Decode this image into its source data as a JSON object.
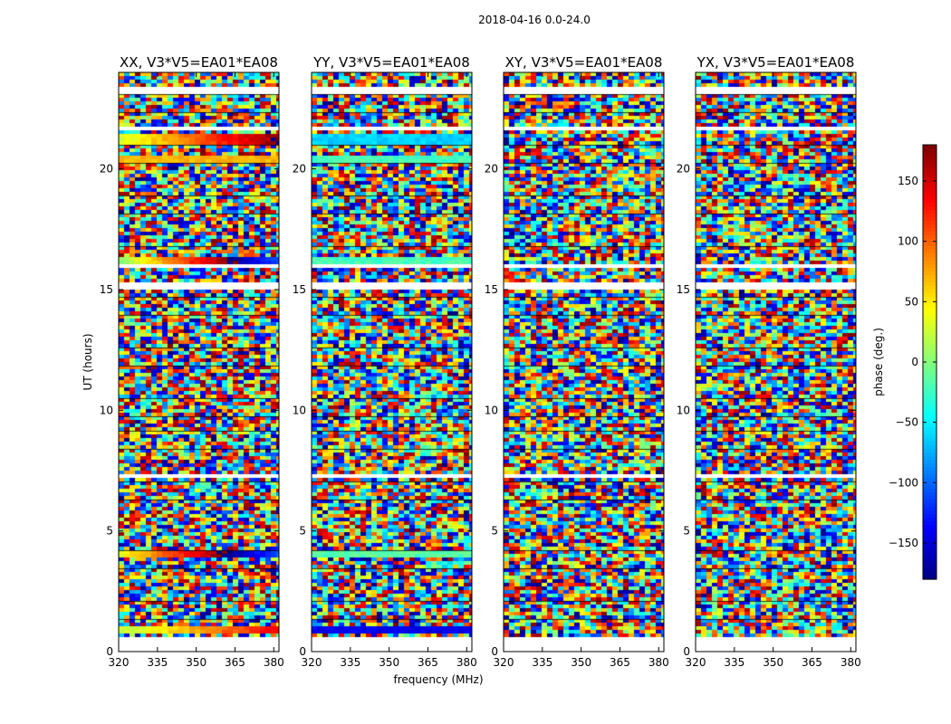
{
  "figure": {
    "suptitle": "2018-04-16 0.0-24.0",
    "xlabel": "frequency (MHz)",
    "ylabel": "UT (hours)",
    "colorbar_label": "phase (deg.)"
  },
  "colorbar": {
    "range": [
      -180,
      180
    ],
    "ticks": [
      "150",
      "100",
      "50",
      "0",
      "−50",
      "−100",
      "−150"
    ],
    "tick_values": [
      150,
      100,
      50,
      0,
      -50,
      -100,
      -150
    ],
    "colormap": "jet"
  },
  "chart_data": {
    "type": "heatmap",
    "title": "2018-04-16 0.0-24.0",
    "xlabel": "frequency (MHz)",
    "ylabel": "UT (hours)",
    "xlim": [
      320,
      382
    ],
    "ylim": [
      0,
      24
    ],
    "x_ticks": [
      "320",
      "335",
      "350",
      "365",
      "380"
    ],
    "x_tick_values": [
      320,
      335,
      350,
      365,
      380
    ],
    "y_ticks": [
      "0",
      "5",
      "10",
      "15",
      "20"
    ],
    "y_tick_values": [
      0,
      5,
      10,
      15,
      20
    ],
    "value_label": "phase (deg.)",
    "value_range": [
      -180,
      180
    ],
    "panels": [
      {
        "title": "XX, V3*V5=EA01*EA08",
        "bands": [
          {
            "hour": 0.95,
            "from": 20,
            "to": 140
          },
          {
            "hour": 4.15,
            "from": 40,
            "to": 260
          },
          {
            "hour": 16.3,
            "from": 10,
            "to": 260
          },
          {
            "hour": 20.5,
            "from": 70,
            "to": 70
          },
          {
            "hour": 21.3,
            "from": 30,
            "to": 180
          }
        ]
      },
      {
        "title": "YY, V3*V5=EA01*EA08",
        "bands": [
          {
            "hour": 1.0,
            "from": -140,
            "to": -140
          },
          {
            "hour": 4.15,
            "from": -15,
            "to": -15
          },
          {
            "hour": 16.3,
            "from": -20,
            "to": -20
          },
          {
            "hour": 20.5,
            "from": -20,
            "to": -20
          },
          {
            "hour": 21.3,
            "from": -60,
            "to": -60
          }
        ]
      },
      {
        "title": "XY, V3*V5=EA01*EA08",
        "bands": []
      },
      {
        "title": "YX, V3*V5=EA01*EA08",
        "bands": []
      }
    ],
    "blank_rows_hours": [
      0.2,
      0.5,
      7.35,
      15.2,
      16.05,
      21.75,
      23.35
    ]
  }
}
